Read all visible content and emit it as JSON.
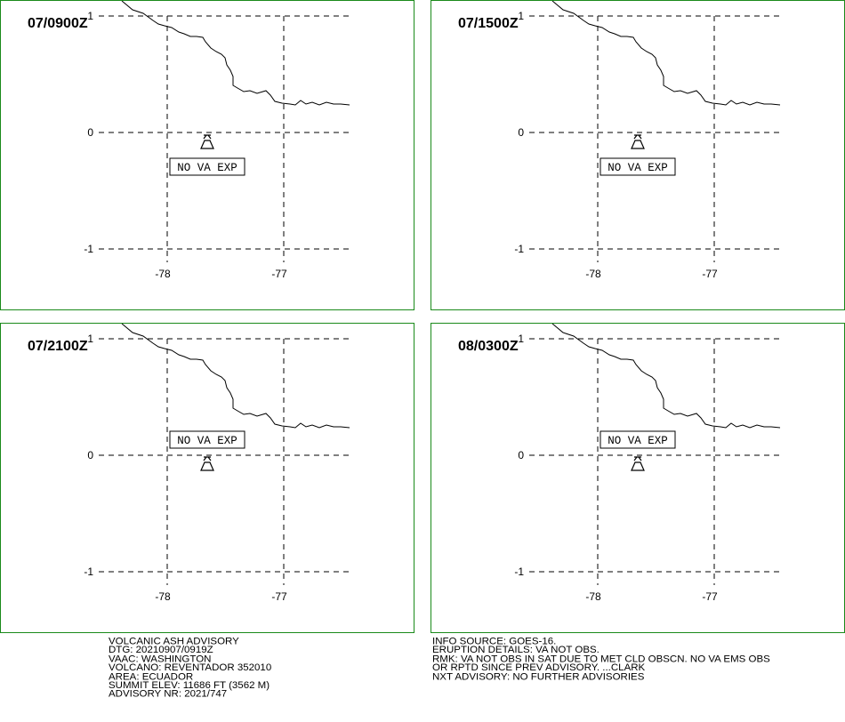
{
  "colors": {
    "frame": "#1a8a1a",
    "ink": "#000000"
  },
  "map": {
    "lat_ticks": [
      "1",
      "0",
      "-1"
    ],
    "lon_ticks": [
      "-78",
      "-77"
    ],
    "volcano_icon": "volcano-icon",
    "panels": [
      {
        "title": "07/0900Z",
        "label": "NO VA EXP",
        "label_pos": "below"
      },
      {
        "title": "07/1500Z",
        "label": "NO VA EXP",
        "label_pos": "below"
      },
      {
        "title": "07/2100Z",
        "label": "NO VA EXP",
        "label_pos": "above"
      },
      {
        "title": "08/0300Z",
        "label": "NO VA EXP",
        "label_pos": "above"
      }
    ]
  },
  "advisory_left": [
    "VOLCANIC ASH ADVISORY",
    "DTG: 20210907/0919Z",
    "VAAC: WASHINGTON",
    "VOLCANO: REVENTADOR 352010",
    "AREA: ECUADOR",
    "SUMMIT ELEV: 11686 FT (3562 M)",
    "ADVISORY NR: 2021/747"
  ],
  "advisory_right": [
    "INFO SOURCE: GOES-16.",
    "ERUPTION DETAILS: VA NOT OBS.",
    "RMK: VA NOT OBS IN SAT DUE TO MET CLD OBSCN. NO VA EMS OBS",
    "OR RPTD SINCE PREV ADVISORY. ...CLARK",
    "NXT ADVISORY: NO FURTHER ADVISORIES"
  ]
}
